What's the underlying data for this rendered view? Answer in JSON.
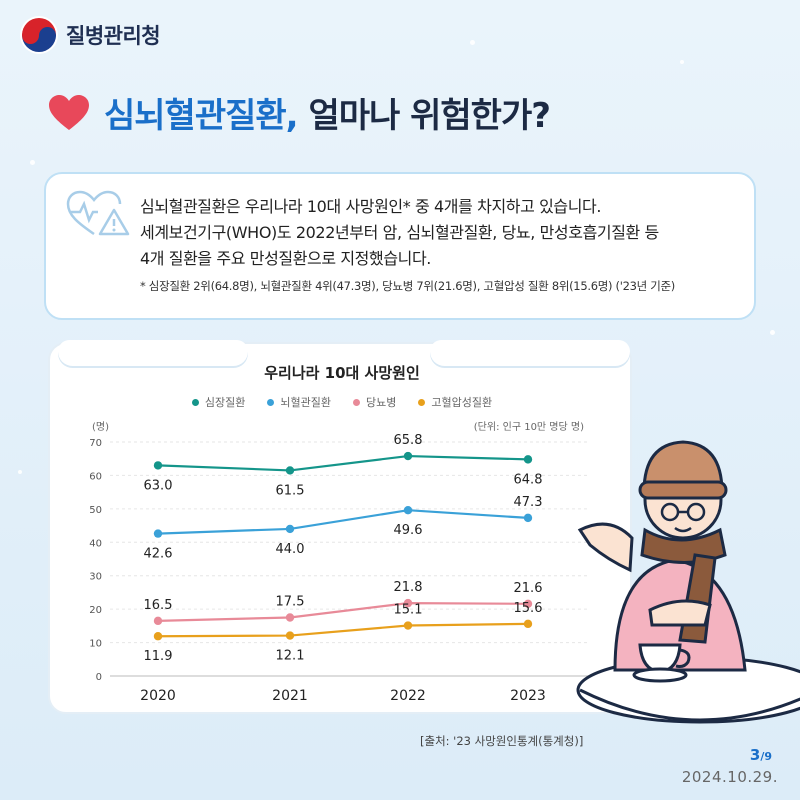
{
  "header": {
    "org_name": "질병관리청"
  },
  "title": {
    "highlight": "심뇌혈관질환,",
    "rest": " 얼마나 위험한가?"
  },
  "info": {
    "line1": "심뇌혈관질환은 우리나라 10대 사망원인* 중 4개를 차지하고 있습니다.",
    "line2": "세계보건기구(WHO)도 2022년부터 암, 심뇌혈관질환, 당뇨, 만성호흡기질환 등",
    "line3": "4개 질환을 주요 만성질환으로 지정했습니다.",
    "note": "* 심장질환 2위(64.8명), 뇌혈관질환 4위(47.3명), 당뇨병 7위(21.6명), 고혈압성 질환 8위(15.6명) ('23년 기준)"
  },
  "chart_data": {
    "type": "line",
    "title": "우리나라 10대 사망원인",
    "ylabel": "(명)",
    "unit_note": "(단위: 인구 10만 명당 명)",
    "x": [
      "2020",
      "2021",
      "2022",
      "2023"
    ],
    "ylim": [
      0,
      70
    ],
    "yticks": [
      0,
      10,
      20,
      30,
      40,
      50,
      60,
      70
    ],
    "grid": true,
    "legend_position": "top-center",
    "series": [
      {
        "name": "심장질환",
        "color": "#14958a",
        "values": [
          63.0,
          61.5,
          65.8,
          64.8
        ],
        "labels": [
          "63.0",
          "61.5",
          "65.8",
          "64.8"
        ]
      },
      {
        "name": "뇌혈관질환",
        "color": "#3aa1d8",
        "values": [
          42.6,
          44.0,
          49.6,
          47.3
        ],
        "labels": [
          "42.6",
          "44.0",
          "49.6",
          "47.3"
        ]
      },
      {
        "name": "당뇨병",
        "color": "#e88a98",
        "values": [
          16.5,
          17.5,
          21.8,
          21.6
        ],
        "labels": [
          "16.5",
          "17.5",
          "21.8",
          "21.6"
        ]
      },
      {
        "name": "고혈압성질환",
        "color": "#e8a01c",
        "values": [
          11.9,
          12.1,
          15.1,
          15.6
        ],
        "labels": [
          "11.9",
          "12.1",
          "15.1",
          "15.6"
        ]
      }
    ]
  },
  "footer": {
    "source": "[출처: '23 사망원인통계(통계청)]",
    "page_current": "3",
    "page_total": "/9",
    "date": "2024.10.29."
  }
}
